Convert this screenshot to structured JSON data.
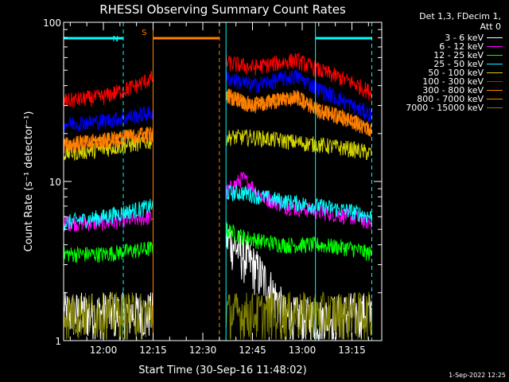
{
  "chart_data": {
    "type": "line",
    "title": "RHESSI Observing Summary Count Rates",
    "xlabel": "Start Time (30-Sep-16 11:48:02)",
    "ylabel": "Count Rate (s⁻¹ detector⁻¹)",
    "y_scale": "log",
    "ylim": [
      1,
      100
    ],
    "x_ticks": [
      "12:00",
      "12:15",
      "12:30",
      "12:45",
      "13:00",
      "13:15"
    ],
    "y_ticks": [
      "1",
      "10",
      "100"
    ],
    "legend_header": [
      "Det 1,3, FDecim 1,",
      "Att 0"
    ],
    "markers": [
      {
        "label": "N",
        "color": "#00ffff"
      },
      {
        "label": "S",
        "color": "#ff8000"
      }
    ],
    "time_axis": {
      "start": "11:48",
      "end": "13:24"
    },
    "intervals": {
      "night_1": {
        "start": "11:48",
        "end": "12:06"
      },
      "saa": {
        "start": "12:15",
        "end": "12:35"
      },
      "night_2": {
        "start": "13:04",
        "end": "13:21"
      },
      "gap": {
        "start": "12:15",
        "end": "12:37"
      }
    },
    "series": [
      {
        "name": "3 - 6 keV",
        "color": "#ffffff",
        "x": [
          "11:48",
          "12:00",
          "12:15",
          "12:37",
          "12:42",
          "12:48",
          "12:55",
          "13:05",
          "13:15",
          "13:21"
        ],
        "y": [
          1.5,
          1.5,
          1.5,
          4.5,
          3.5,
          2.5,
          1.4,
          1.4,
          1.5,
          1.5
        ]
      },
      {
        "name": "6 - 12 keV",
        "color": "#ff00ff",
        "x": [
          "11:48",
          "12:00",
          "12:15",
          "12:37",
          "12:42",
          "12:48",
          "12:55",
          "13:05",
          "13:15",
          "13:21"
        ],
        "y": [
          5.5,
          5.5,
          6.0,
          8.5,
          10.5,
          8.0,
          7.0,
          6.5,
          6.0,
          5.5
        ]
      },
      {
        "name": "12 - 25 keV",
        "color": "#00ff00",
        "x": [
          "11:48",
          "12:00",
          "12:15",
          "12:37",
          "12:42",
          "12:48",
          "12:55",
          "13:05",
          "13:15",
          "13:21"
        ],
        "y": [
          3.5,
          3.5,
          3.8,
          5.0,
          4.5,
          4.2,
          4.0,
          4.0,
          3.8,
          3.5
        ]
      },
      {
        "name": "25 - 50 keV",
        "color": "#00ffff",
        "x": [
          "11:48",
          "12:00",
          "12:15",
          "12:37",
          "12:42",
          "12:48",
          "12:55",
          "13:05",
          "13:15",
          "13:21"
        ],
        "y": [
          5.5,
          6.0,
          7.0,
          8.5,
          8.5,
          8.0,
          7.5,
          7.0,
          6.5,
          6.0
        ]
      },
      {
        "name": "50 - 100 keV",
        "color": "#d4d400",
        "x": [
          "11:48",
          "12:00",
          "12:15",
          "12:37",
          "12:45",
          "12:55",
          "13:05",
          "13:15",
          "13:21"
        ],
        "y": [
          15,
          16,
          18,
          19,
          19,
          18,
          17,
          16,
          15
        ]
      },
      {
        "name": "100 - 300 keV",
        "color": "#ff0000",
        "x": [
          "11:48",
          "12:00",
          "12:10",
          "12:15",
          "12:37",
          "12:45",
          "12:58",
          "13:05",
          "13:15",
          "13:21"
        ],
        "y": [
          32,
          34,
          40,
          45,
          56,
          52,
          58,
          50,
          42,
          36
        ]
      },
      {
        "name": "300 - 800 keV",
        "color": "#ff8000",
        "x": [
          "11:48",
          "12:00",
          "12:15",
          "12:37",
          "12:45",
          "12:58",
          "13:05",
          "13:15",
          "13:21"
        ],
        "y": [
          17,
          18,
          20,
          35,
          30,
          34,
          28,
          24,
          21
        ]
      },
      {
        "name": "800 - 7000 keV",
        "color": "#ff8000",
        "x": [
          "11:48",
          "12:00",
          "12:15",
          "12:37",
          "12:45",
          "12:58",
          "13:05",
          "13:15",
          "13:21"
        ],
        "y": [
          17,
          18,
          20,
          35,
          30,
          34,
          28,
          24,
          21
        ]
      },
      {
        "name": "7000 - 15000 keV",
        "color": "#808000",
        "x": [
          "11:48",
          "12:00",
          "12:15",
          "12:37",
          "12:45",
          "12:55",
          "13:05",
          "13:15",
          "13:21"
        ],
        "y": [
          1.5,
          1.5,
          1.5,
          1.5,
          1.5,
          1.5,
          1.5,
          1.5,
          1.5
        ]
      },
      {
        "name": "",
        "color": "#0000ff",
        "x": [
          "11:48",
          "12:00",
          "12:15",
          "12:37",
          "12:45",
          "12:58",
          "13:05",
          "13:15",
          "13:21"
        ],
        "y": [
          23,
          24,
          27,
          45,
          40,
          46,
          38,
          30,
          26
        ]
      }
    ]
  },
  "footer": {
    "timestamp": "1-Sep-2022 12:25"
  }
}
